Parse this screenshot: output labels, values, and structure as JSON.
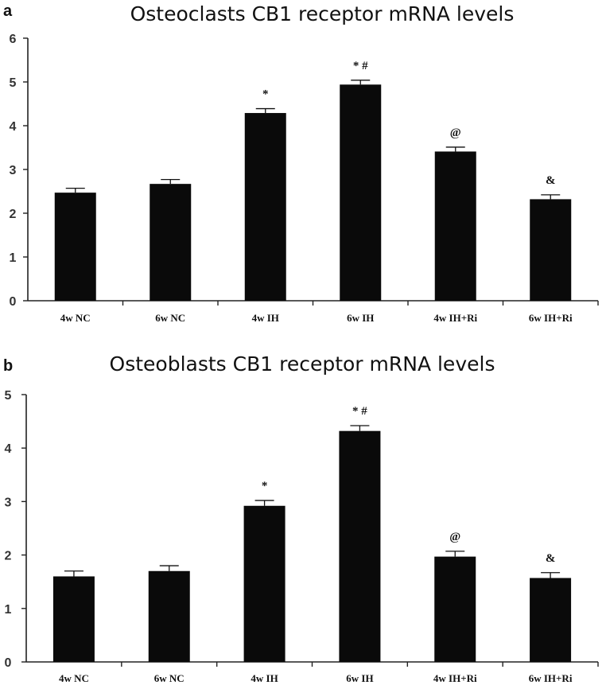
{
  "chart_data": [
    {
      "type": "bar",
      "panel": "a",
      "title": "Osteoclasts CB1 receptor mRNA levels",
      "categories": [
        "4w NC",
        "6w NC",
        "4w IH",
        "6w IH",
        "4w IH+Ri",
        "6w IH+Ri"
      ],
      "values": [
        2.47,
        2.67,
        4.29,
        4.94,
        3.41,
        2.32
      ],
      "errors": [
        0.1,
        0.1,
        0.1,
        0.1,
        0.1,
        0.1
      ],
      "annotations": [
        "",
        "",
        "*",
        "* #",
        "@",
        "&"
      ],
      "ylim": [
        0,
        6
      ],
      "yticks": [
        "0",
        "1",
        "2",
        "3",
        "4",
        "5",
        "6"
      ],
      "xlabel": "",
      "ylabel": "",
      "grid": false
    },
    {
      "type": "bar",
      "panel": "b",
      "title": "Osteoblasts CB1 receptor mRNA levels",
      "categories": [
        "4w NC",
        "6w NC",
        "4w IH",
        "6w IH",
        "4w IH+Ri",
        "6w IH+Ri"
      ],
      "values": [
        1.6,
        1.7,
        2.92,
        4.32,
        1.97,
        1.57
      ],
      "errors": [
        0.1,
        0.1,
        0.1,
        0.1,
        0.1,
        0.1
      ],
      "annotations": [
        "",
        "",
        "*",
        "* #",
        "@",
        "&"
      ],
      "ylim": [
        0,
        5
      ],
      "yticks": [
        "0",
        "1",
        "2",
        "3",
        "4",
        "5"
      ],
      "xlabel": "",
      "ylabel": "",
      "grid": false
    }
  ],
  "colors": {
    "bar": "#0a0a0a",
    "axis": "#222222"
  }
}
